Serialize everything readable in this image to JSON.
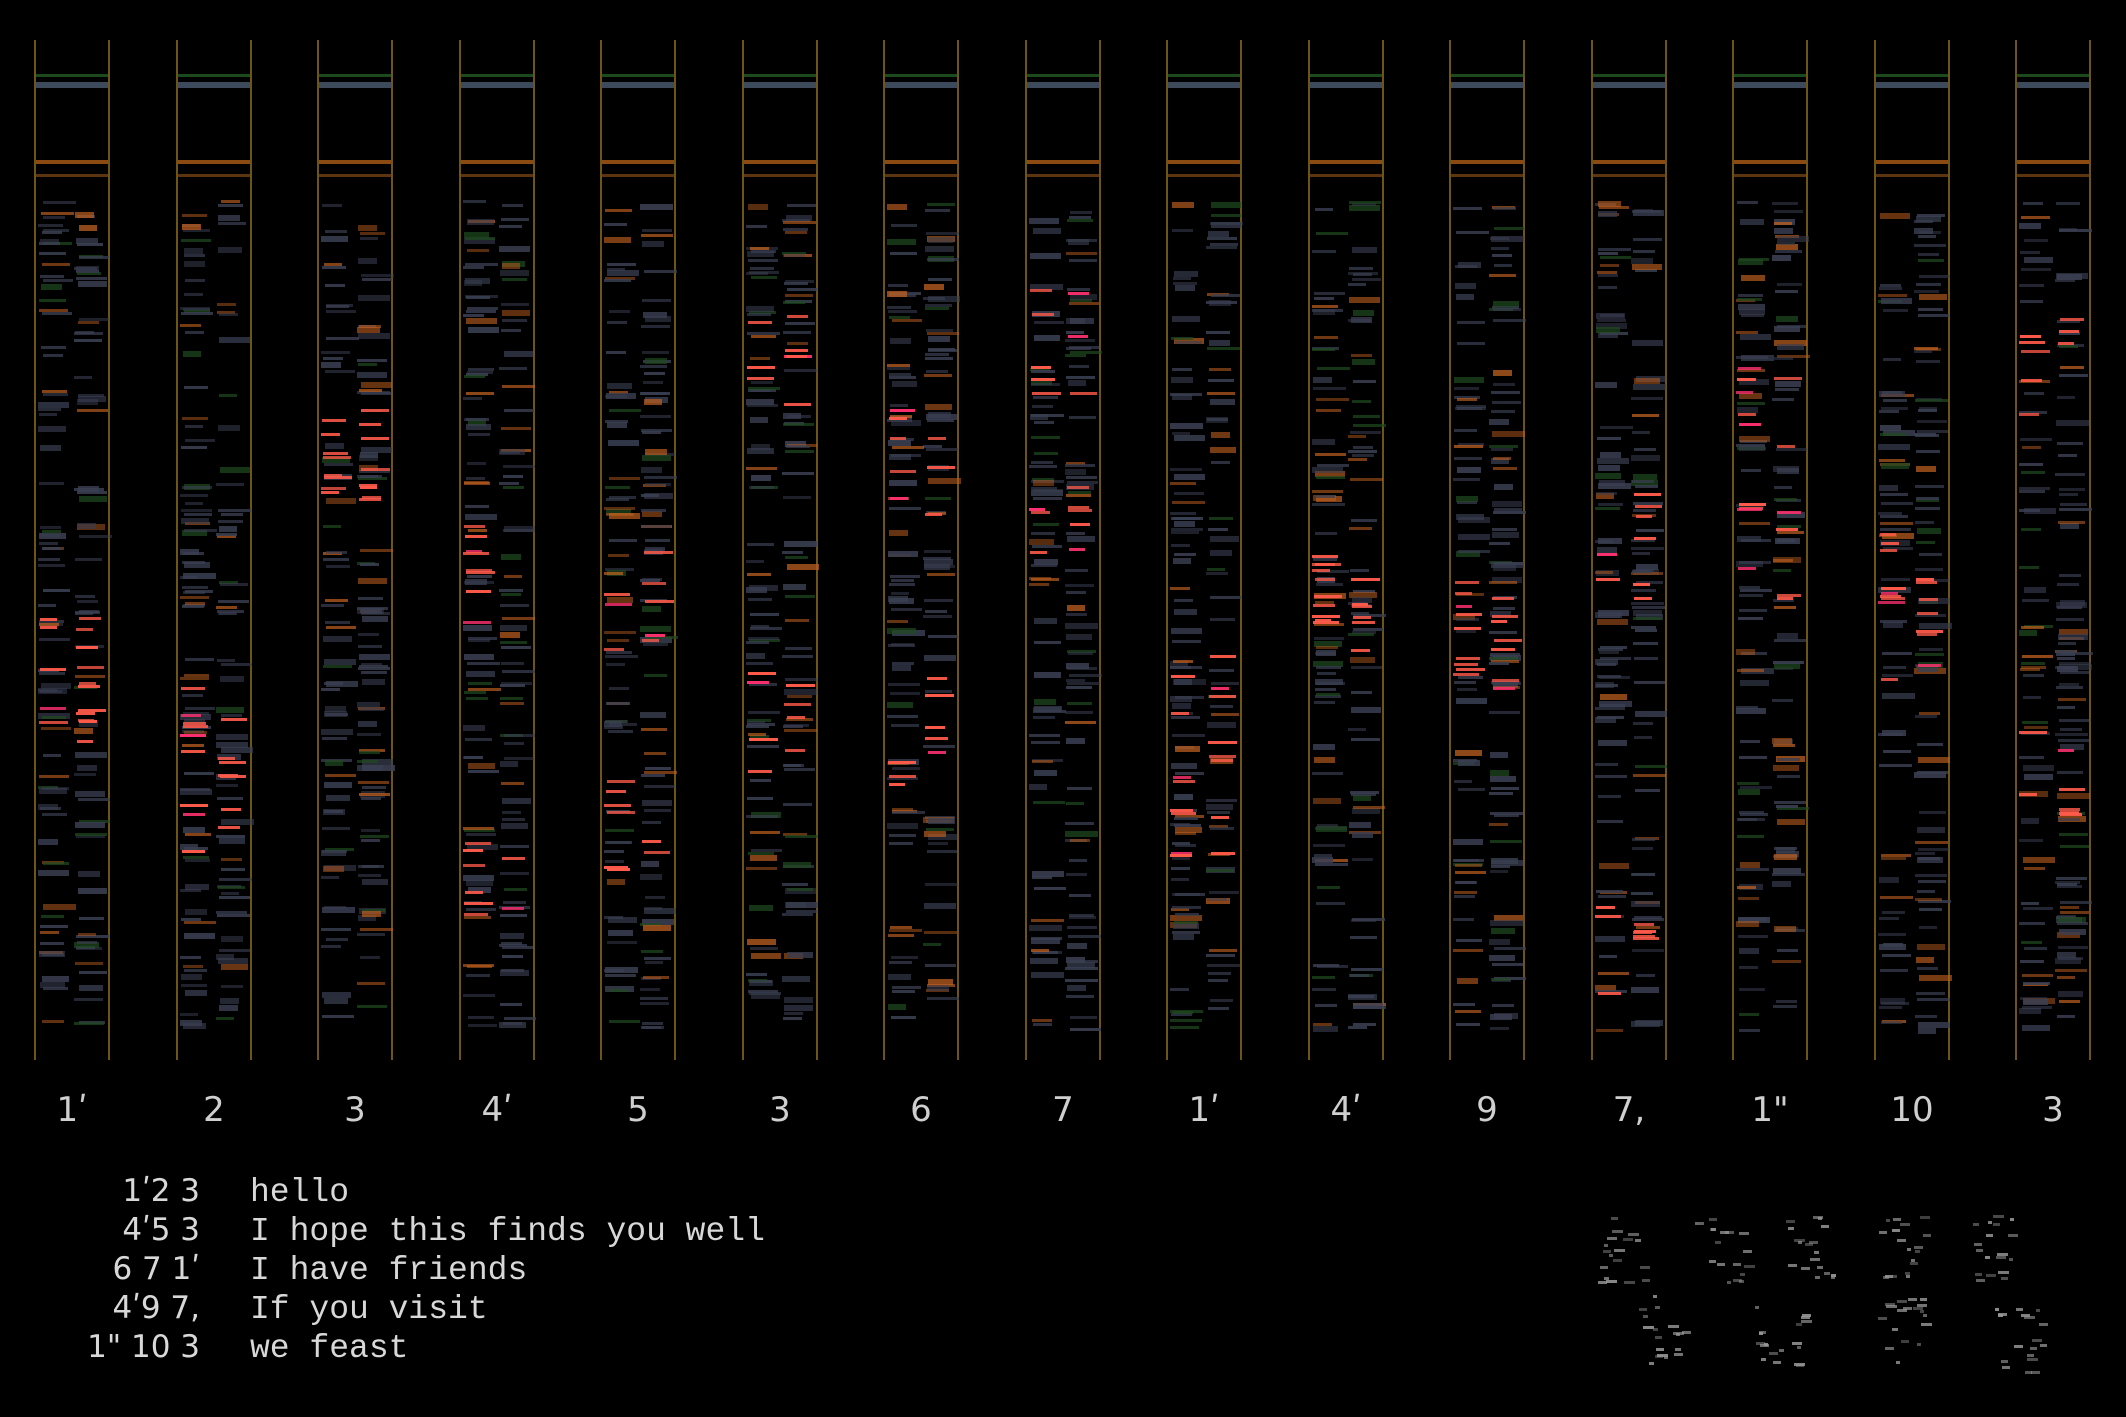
{
  "columns": [
    {
      "label": "1ʹ"
    },
    {
      "label": "2"
    },
    {
      "label": "3"
    },
    {
      "label": "4ʹ"
    },
    {
      "label": "5"
    },
    {
      "label": "3"
    },
    {
      "label": "6"
    },
    {
      "label": "7"
    },
    {
      "label": "1ʹ"
    },
    {
      "label": "4ʹ"
    },
    {
      "label": "9"
    },
    {
      "label": "7,"
    },
    {
      "label": "1\""
    },
    {
      "label": "10"
    },
    {
      "label": "3"
    }
  ],
  "legend": [
    {
      "code": "1ʹ2 3",
      "message": "hello"
    },
    {
      "code": "4ʹ5 3",
      "message": "I hope this finds you well"
    },
    {
      "code": "6 7 1ʹ",
      "message": "I have friends"
    },
    {
      "code": "4ʹ9 7,",
      "message": "If you visit"
    },
    {
      "code": "1\" 10 3",
      "message": "we feast"
    }
  ],
  "colors": {
    "rail": "#8a6a1c",
    "gray_mark": "#3a3f52",
    "orange_mark": "#c06020",
    "red_mark": "#ff5a4a",
    "pink_mark": "#ff3070",
    "green_mark": "#1f4a1f"
  }
}
